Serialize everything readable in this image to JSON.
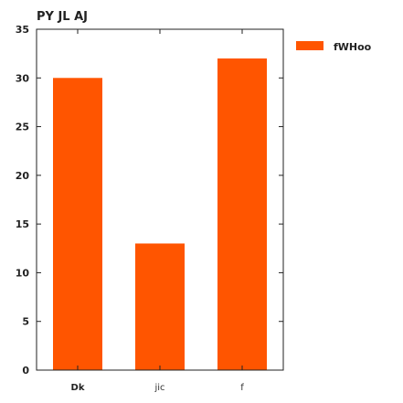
{
  "chart_data": {
    "type": "bar",
    "title": "PY JL AJ",
    "categories": [
      "Dk",
      "jic",
      "f"
    ],
    "series": [
      {
        "name": "fWHoo",
        "values": [
          30,
          13,
          32
        ]
      }
    ],
    "xlabel": "",
    "ylabel": "",
    "ylim": [
      0,
      35
    ],
    "yticks": [
      "0",
      "5",
      "10",
      "15",
      "20",
      "25",
      "30",
      "35"
    ],
    "grid": false,
    "legend_position": "outside-right-top",
    "bar_color": "#ff5500"
  }
}
